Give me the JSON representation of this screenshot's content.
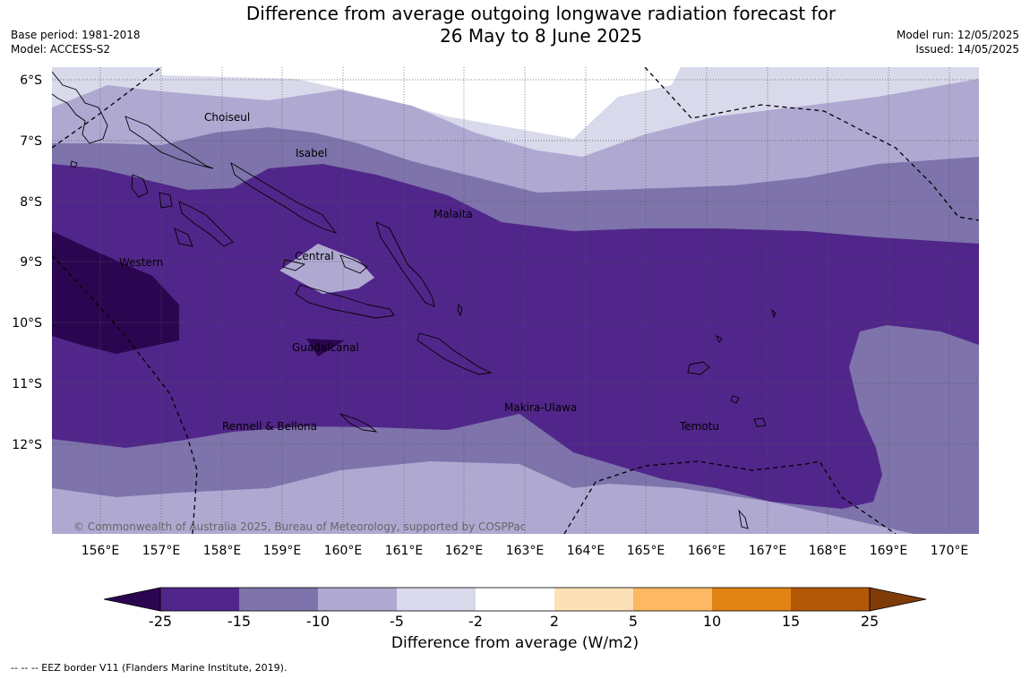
{
  "title_line1": "Difference from average outgoing longwave radiation forecast for",
  "title_line2": "26 May to 8 June 2025",
  "meta_left": {
    "base_period": "Base period: 1981-2018",
    "model": "Model: ACCESS-S2"
  },
  "meta_right": {
    "model_run": "Model run: 12/05/2025",
    "issued": "Issued: 14/05/2025"
  },
  "lat_labels": [
    "6°S",
    "7°S",
    "8°S",
    "9°S",
    "10°S",
    "11°S",
    "12°S"
  ],
  "lon_labels": [
    "156°E",
    "157°E",
    "158°E",
    "159°E",
    "160°E",
    "161°E",
    "162°E",
    "163°E",
    "164°E",
    "165°E",
    "166°E",
    "167°E",
    "168°E",
    "169°E",
    "170°E"
  ],
  "province_labels": [
    "Choiseul",
    "Isabel",
    "Malaita",
    "Western",
    "Central",
    "Guadalcanal",
    "Makira-Ulawa",
    "Rennell & Bellona",
    "Temotu"
  ],
  "copyright": "© Commonwealth of Australia 2025, Bureau of Meteorology, supported by COSPPac",
  "colorbar": {
    "ticks": [
      "-25",
      "-15",
      "-10",
      "-5",
      "-2",
      "2",
      "5",
      "10",
      "15",
      "25"
    ],
    "colors": [
      "#2b0650",
      "#51268a",
      "#7e73ab",
      "#afa9d2",
      "#d9d9ec",
      "#ffffff",
      "#fee0b6",
      "#fdb863",
      "#e08214",
      "#b35806",
      "#7f3b08"
    ],
    "label": "Difference from average (W/m2)"
  },
  "footnote": "--  --  -- EEZ border V11 (Flanders Marine Institute, 2019)."
}
